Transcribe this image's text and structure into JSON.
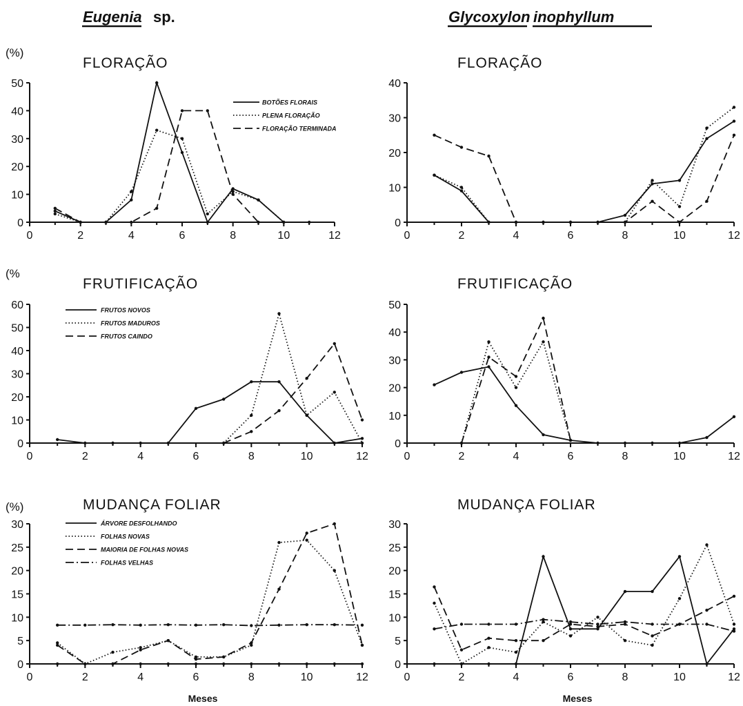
{
  "species": {
    "left": {
      "genus": "Eugenia",
      "suffix": "sp."
    },
    "right": {
      "genus": "Glycoxylon",
      "suffix": "inophyllum"
    }
  },
  "xlabel": "Meses",
  "chart_data": [
    {
      "id": "eugenia-floracao",
      "type": "line",
      "title": "FLORAÇÃO",
      "unit_label": "(%)",
      "xlabel": "",
      "xlim": [
        0,
        12
      ],
      "xticks": [
        "0",
        "2",
        "4",
        "6",
        "8",
        "10",
        "12"
      ],
      "ylim": [
        0,
        50
      ],
      "yticks": [
        "0",
        "10",
        "20",
        "30",
        "40",
        "50"
      ],
      "legend": "top-right",
      "series": [
        {
          "name": "BOTÕES FLORAIS",
          "style": "solid",
          "x": [
            1,
            2,
            3,
            4,
            5,
            6,
            7,
            8,
            9,
            10,
            11
          ],
          "y": [
            4,
            0,
            0,
            8,
            50,
            25,
            0,
            12,
            8,
            0,
            0
          ]
        },
        {
          "name": "PLENA FLORAÇÃO",
          "style": "dotted",
          "x": [
            1,
            2,
            3,
            4,
            5,
            6,
            7,
            8,
            9,
            10
          ],
          "y": [
            3,
            0,
            0,
            11,
            33,
            30,
            3,
            11,
            8,
            0
          ]
        },
        {
          "name": "FLORAÇÃO TERMINADA",
          "style": "dashed",
          "x": [
            1,
            2,
            3,
            4,
            5,
            6,
            7,
            8,
            9
          ],
          "y": [
            5,
            0,
            0,
            0,
            5,
            40,
            40,
            10,
            0
          ]
        }
      ]
    },
    {
      "id": "glycoxylon-floracao",
      "type": "line",
      "title": "FLORAÇÃO",
      "unit_label": "",
      "xlabel": "",
      "xlim": [
        0,
        12
      ],
      "xticks": [
        "0",
        "2",
        "4",
        "6",
        "8",
        "10",
        "12"
      ],
      "ylim": [
        0,
        40
      ],
      "yticks": [
        "0",
        "10",
        "20",
        "30",
        "40"
      ],
      "series": [
        {
          "name": "",
          "style": "solid",
          "x": [
            1,
            2,
            3,
            4,
            5,
            6,
            7,
            8,
            9,
            10,
            11,
            12
          ],
          "y": [
            13.5,
            9,
            0,
            0,
            0,
            0,
            0,
            2,
            11,
            12,
            24,
            29
          ]
        },
        {
          "name": "",
          "style": "dotted",
          "x": [
            1,
            2,
            3,
            4,
            5,
            6,
            7,
            8,
            9,
            10,
            11,
            12
          ],
          "y": [
            13.5,
            10,
            0,
            0,
            0,
            0,
            0,
            0,
            12,
            4.5,
            27,
            33
          ]
        },
        {
          "name": "",
          "style": "dashed",
          "x": [
            1,
            2,
            3,
            4,
            5,
            6,
            7,
            8,
            9,
            10,
            11,
            12
          ],
          "y": [
            25,
            21.5,
            19,
            0,
            0,
            0,
            0,
            0,
            6,
            0,
            6,
            25
          ]
        }
      ]
    },
    {
      "id": "eugenia-frutificacao",
      "type": "line",
      "title": "FRUTIFICAÇÃO",
      "unit_label": "(%",
      "xlabel": "",
      "xlim": [
        0,
        12
      ],
      "xticks": [
        "0",
        "2",
        "4",
        "6",
        "8",
        "10",
        "12"
      ],
      "ylim": [
        0,
        60
      ],
      "yticks": [
        "0",
        "10",
        "20",
        "30",
        "40",
        "50",
        "60"
      ],
      "legend": "top-left",
      "series": [
        {
          "name": "FRUTOS NOVOS",
          "style": "solid",
          "x": [
            1,
            2,
            3,
            4,
            5,
            6,
            7,
            8,
            9,
            10,
            11,
            12
          ],
          "y": [
            1.5,
            0,
            0,
            0,
            0,
            15,
            19,
            26.5,
            26.5,
            12,
            0,
            2
          ]
        },
        {
          "name": "FRUTOS MADUROS",
          "style": "dotted",
          "x": [
            7,
            8,
            9,
            10,
            11,
            12
          ],
          "y": [
            0,
            12,
            56,
            12,
            22,
            0
          ]
        },
        {
          "name": "FRUTOS CAINDO",
          "style": "dashed",
          "x": [
            7,
            8,
            9,
            10,
            11,
            12
          ],
          "y": [
            0,
            5,
            14,
            28,
            43,
            10
          ]
        }
      ]
    },
    {
      "id": "glycoxylon-frutificacao",
      "type": "line",
      "title": "FRUTIFICAÇÃO",
      "unit_label": "",
      "xlabel": "",
      "xlim": [
        0,
        12
      ],
      "xticks": [
        "0",
        "2",
        "4",
        "6",
        "8",
        "10",
        "12"
      ],
      "ylim": [
        0,
        50
      ],
      "yticks": [
        "0",
        "10",
        "20",
        "30",
        "40",
        "50"
      ],
      "series": [
        {
          "name": "",
          "style": "solid",
          "x": [
            1,
            2,
            3,
            4,
            5,
            6,
            7,
            8,
            9,
            10,
            11,
            12
          ],
          "y": [
            21,
            25.5,
            27.5,
            13.5,
            3,
            1,
            0,
            0,
            0,
            0,
            2,
            9.5
          ]
        },
        {
          "name": "",
          "style": "dotted",
          "x": [
            2,
            3,
            4,
            5,
            6
          ],
          "y": [
            0,
            36.5,
            20,
            36.5,
            1
          ]
        },
        {
          "name": "",
          "style": "dashed",
          "x": [
            2,
            3,
            4,
            5,
            6
          ],
          "y": [
            0,
            31,
            24,
            45,
            1
          ]
        }
      ]
    },
    {
      "id": "eugenia-mudanca-foliar",
      "type": "line",
      "title": "MUDANÇA FOLIAR",
      "unit_label": "(%)",
      "xlabel": "Meses",
      "xlim": [
        0,
        12
      ],
      "xticks": [
        "0",
        "2",
        "4",
        "6",
        "8",
        "10",
        "12"
      ],
      "ylim": [
        0,
        30
      ],
      "yticks": [
        "0",
        "5",
        "10",
        "15",
        "20",
        "25",
        "30"
      ],
      "legend": "top-left",
      "series": [
        {
          "name": "ÁRVORE DESFOLHANDO",
          "style": "solid",
          "x": [
            1,
            2,
            3,
            4,
            5,
            6,
            7,
            8,
            9,
            10,
            11,
            12
          ],
          "y": [
            0,
            0,
            0,
            0,
            0,
            0,
            0,
            0,
            0,
            0,
            0,
            0
          ]
        },
        {
          "name": "FOLHAS NOVAS",
          "style": "dotted",
          "x": [
            1,
            2,
            3,
            4,
            5,
            6,
            7,
            8,
            9,
            10,
            11,
            12
          ],
          "y": [
            4.5,
            0,
            2.5,
            3.5,
            5,
            1.5,
            1.5,
            4,
            26,
            26.5,
            20,
            4
          ]
        },
        {
          "name": "MAIORIA DE FOLHAS NOVAS",
          "style": "dashed",
          "x": [
            1,
            2,
            3,
            4,
            5,
            6,
            7,
            8,
            9,
            10,
            11,
            12
          ],
          "y": [
            4,
            0,
            0,
            3,
            5,
            1,
            1.5,
            4.5,
            16,
            28,
            30,
            4
          ]
        },
        {
          "name": "FOLHAS VELHAS",
          "style": "dashdot",
          "x": [
            1,
            2,
            3,
            4,
            5,
            6,
            7,
            8,
            9,
            10,
            11,
            12
          ],
          "y": [
            8.3,
            8.3,
            8.4,
            8.3,
            8.4,
            8.3,
            8.4,
            8.2,
            8.3,
            8.4,
            8.4,
            8.3
          ]
        }
      ]
    },
    {
      "id": "glycoxylon-mudanca-foliar",
      "type": "line",
      "title": "MUDANÇA FOLIAR",
      "unit_label": "",
      "xlabel": "Meses",
      "xlim": [
        0,
        12
      ],
      "xticks": [
        "0",
        "2",
        "4",
        "6",
        "8",
        "10",
        "12"
      ],
      "ylim": [
        0,
        30
      ],
      "yticks": [
        "0",
        "5",
        "10",
        "15",
        "20",
        "25",
        "30"
      ],
      "series": [
        {
          "name": "",
          "style": "solid",
          "x": [
            1,
            2,
            3,
            4,
            5,
            6,
            7,
            8,
            9,
            10,
            11,
            12
          ],
          "y": [
            0,
            0,
            0,
            0,
            23,
            7.5,
            7.5,
            15.5,
            15.5,
            23,
            0,
            7.5
          ]
        },
        {
          "name": "",
          "style": "dotted",
          "x": [
            1,
            2,
            3,
            4,
            5,
            6,
            7,
            8,
            9,
            10,
            11,
            12
          ],
          "y": [
            13,
            0,
            3.5,
            2.5,
            9,
            6,
            10,
            5,
            4,
            14,
            25.5,
            8.5
          ]
        },
        {
          "name": "",
          "style": "dashed",
          "x": [
            1,
            2,
            3,
            4,
            5,
            6,
            7,
            8,
            9,
            10,
            11,
            12
          ],
          "y": [
            16.5,
            3,
            5.5,
            5,
            5,
            8.5,
            8,
            8.5,
            6,
            8.5,
            11.5,
            14.5
          ]
        },
        {
          "name": "",
          "style": "dashdot",
          "x": [
            1,
            2,
            3,
            4,
            5,
            6,
            7,
            8,
            9,
            10,
            11,
            12
          ],
          "y": [
            7.5,
            8.5,
            8.5,
            8.5,
            9.5,
            9,
            8.5,
            9,
            8.5,
            8.5,
            8.5,
            7
          ]
        }
      ]
    }
  ]
}
